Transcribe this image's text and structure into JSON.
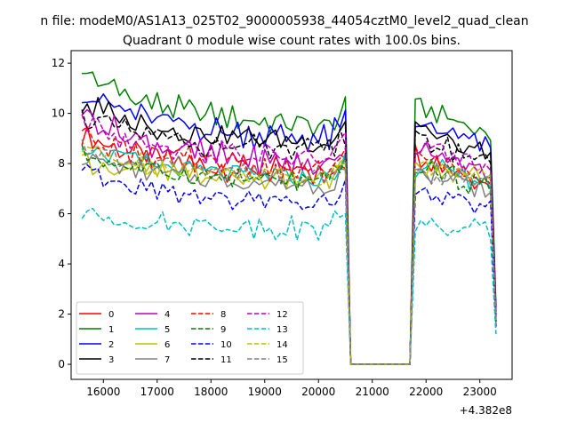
{
  "suptitle": "n file: modeM0/AS1A13_025T02_9000005938_44054cztM0_level2_quad_clean",
  "chart_data": {
    "type": "line",
    "title": "Quadrant 0 module wise count rates with 100.0s bins.",
    "xlabel": "",
    "ylabel": "",
    "x_offset_label": "+4.382e8",
    "xlim": [
      15400,
      23600
    ],
    "ylim": [
      -0.6,
      12.5
    ],
    "xticks": [
      16000,
      17000,
      18000,
      19000,
      20000,
      21000,
      22000,
      23000
    ],
    "yticks": [
      0,
      2,
      4,
      6,
      8,
      10,
      12
    ],
    "grid": false,
    "legend": {
      "placement": "lower-left",
      "columns": 4
    },
    "x": {
      "start": 15600,
      "step": 100,
      "count": 78
    },
    "gap": {
      "from": 20600,
      "to": 21700,
      "value": 0
    },
    "series": [
      {
        "name": "0",
        "color": "#ff0000",
        "dashed": false,
        "seg1_start": 9.2,
        "seg1_end": 7.5,
        "seg2_start": 8.4,
        "seg2_end": 7.2,
        "end": 1.8
      },
      {
        "name": "1",
        "color": "#008000",
        "dashed": false,
        "seg1_start": 11.7,
        "seg1_end": 9.4,
        "seg2_start": 10.3,
        "seg2_end": 9.2,
        "end": 2.3
      },
      {
        "name": "2",
        "color": "#0000ff",
        "dashed": false,
        "seg1_start": 10.9,
        "seg1_end": 8.9,
        "seg2_start": 9.6,
        "seg2_end": 8.6,
        "end": 2.1
      },
      {
        "name": "3",
        "color": "#000000",
        "dashed": false,
        "seg1_start": 10.4,
        "seg1_end": 8.8,
        "seg2_start": 9.3,
        "seg2_end": 8.3,
        "end": 2.0
      },
      {
        "name": "4",
        "color": "#bf00bf",
        "dashed": false,
        "seg1_start": 10.1,
        "seg1_end": 7.8,
        "seg2_start": 8.6,
        "seg2_end": 7.6,
        "end": 1.9
      },
      {
        "name": "5",
        "color": "#00bfbf",
        "dashed": false,
        "seg1_start": 8.8,
        "seg1_end": 7.3,
        "seg2_start": 7.9,
        "seg2_end": 7.3,
        "end": 1.7
      },
      {
        "name": "6",
        "color": "#bfbf00",
        "dashed": false,
        "seg1_start": 8.1,
        "seg1_end": 7.3,
        "seg2_start": 7.9,
        "seg2_end": 7.5,
        "end": 1.7
      },
      {
        "name": "7",
        "color": "#808080",
        "dashed": false,
        "seg1_start": 8.3,
        "seg1_end": 7.1,
        "seg2_start": 7.8,
        "seg2_end": 6.9,
        "end": 1.6
      },
      {
        "name": "8",
        "color": "#ff0000",
        "dashed": true,
        "seg1_start": 9.3,
        "seg1_end": 7.6,
        "seg2_start": 8.3,
        "seg2_end": 7.5,
        "end": 1.8
      },
      {
        "name": "9",
        "color": "#008000",
        "dashed": true,
        "seg1_start": 8.4,
        "seg1_end": 7.2,
        "seg2_start": 7.9,
        "seg2_end": 7.0,
        "end": 1.7
      },
      {
        "name": "10",
        "color": "#0000ff",
        "dashed": true,
        "seg1_start": 7.7,
        "seg1_end": 6.3,
        "seg2_start": 6.9,
        "seg2_end": 6.1,
        "end": 1.5
      },
      {
        "name": "11",
        "color": "#000000",
        "dashed": true,
        "seg1_start": 9.9,
        "seg1_end": 8.4,
        "seg2_start": 9.0,
        "seg2_end": 8.1,
        "end": 1.9
      },
      {
        "name": "12",
        "color": "#bf00bf",
        "dashed": true,
        "seg1_start": 9.8,
        "seg1_end": 8.1,
        "seg2_start": 8.7,
        "seg2_end": 7.9,
        "end": 1.9
      },
      {
        "name": "13",
        "color": "#00bfbf",
        "dashed": true,
        "seg1_start": 6.0,
        "seg1_end": 5.4,
        "seg2_start": 5.5,
        "seg2_end": 5.3,
        "end": 1.2
      },
      {
        "name": "14",
        "color": "#bfbf00",
        "dashed": true,
        "seg1_start": 8.6,
        "seg1_end": 7.4,
        "seg2_start": 7.9,
        "seg2_end": 7.4,
        "end": 1.7
      },
      {
        "name": "15",
        "color": "#808080",
        "dashed": true,
        "seg1_start": 8.8,
        "seg1_end": 7.4,
        "seg2_start": 7.7,
        "seg2_end": 7.2,
        "end": 1.6
      }
    ]
  }
}
